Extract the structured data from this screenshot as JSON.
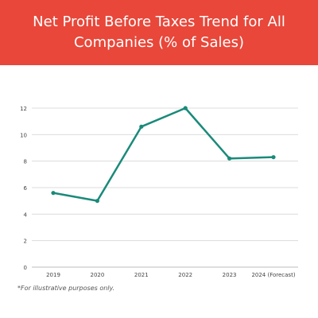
{
  "banner": {
    "color": "#e8473a",
    "title": "Net Profit Before Taxes Trend for All Companies (% of Sales)"
  },
  "footnote": "*For illustrative purposes only.",
  "chart_data": {
    "type": "line",
    "title": "Net Profit Before Taxes Trend for All Companies (% of Sales)",
    "xlabel": "",
    "ylabel": "",
    "categories": [
      "2019",
      "2020",
      "2021",
      "2022",
      "2023",
      "2024 (Forecast)"
    ],
    "series": [
      {
        "values": [
          5.6,
          5.0,
          10.6,
          12.0,
          8.2,
          8.3
        ],
        "color": "#1a8a7a"
      }
    ],
    "ylim": [
      0,
      12
    ],
    "yticks": [
      0,
      2,
      4,
      6,
      8,
      10,
      12
    ],
    "grid": true
  }
}
